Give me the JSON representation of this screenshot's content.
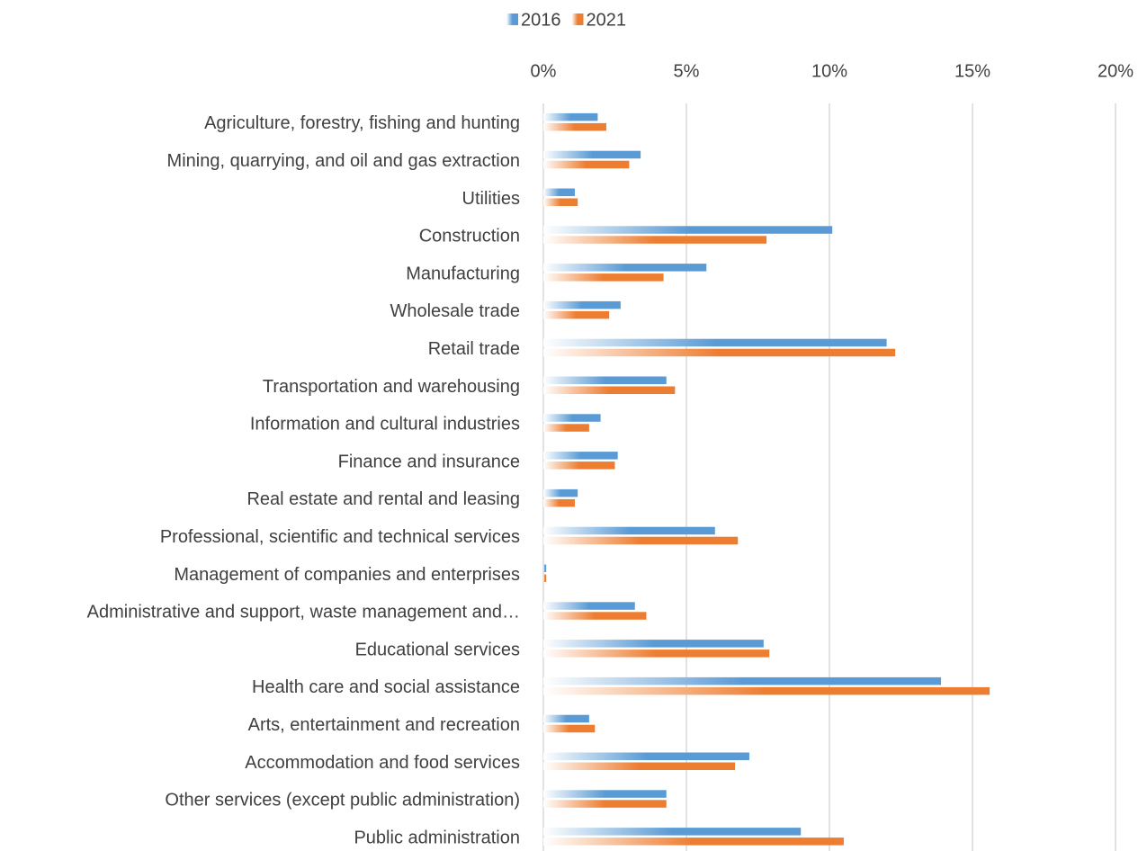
{
  "chart_data": {
    "type": "barh",
    "categories": [
      "Agriculture, forestry, fishing and hunting",
      "Mining, quarrying, and oil and gas extraction",
      "Utilities",
      "Construction",
      "Manufacturing",
      "Wholesale trade",
      "Retail trade",
      "Transportation and warehousing",
      "Information and cultural industries",
      "Finance and insurance",
      "Real estate and rental and leasing",
      "Professional, scientific and technical services",
      "Management of companies and enterprises",
      "Administrative and support, waste management and…",
      "Educational services",
      "Health care and social assistance",
      "Arts, entertainment and recreation",
      "Accommodation and food services",
      "Other services (except public administration)",
      "Public administration"
    ],
    "series": [
      {
        "name": "2016",
        "color": "#5b9bd5",
        "values": [
          1.9,
          3.4,
          1.1,
          10.1,
          5.7,
          2.7,
          12.0,
          4.3,
          2.0,
          2.6,
          1.2,
          6.0,
          0.1,
          3.2,
          7.7,
          13.9,
          1.6,
          7.2,
          4.3,
          9.0
        ]
      },
      {
        "name": "2021",
        "color": "#ed7d31",
        "values": [
          2.2,
          3.0,
          1.2,
          7.8,
          4.2,
          2.3,
          12.3,
          4.6,
          1.6,
          2.5,
          1.1,
          6.8,
          0.1,
          3.6,
          7.9,
          15.6,
          1.8,
          6.7,
          4.3,
          10.5
        ]
      }
    ],
    "xlim": [
      0,
      20
    ],
    "xticks": [
      {
        "value": 0,
        "label": "0%"
      },
      {
        "value": 5,
        "label": "5%"
      },
      {
        "value": 10,
        "label": "10%"
      },
      {
        "value": 15,
        "label": "15%"
      },
      {
        "value": 20,
        "label": "20%"
      }
    ],
    "grid": true,
    "legend": "top"
  }
}
